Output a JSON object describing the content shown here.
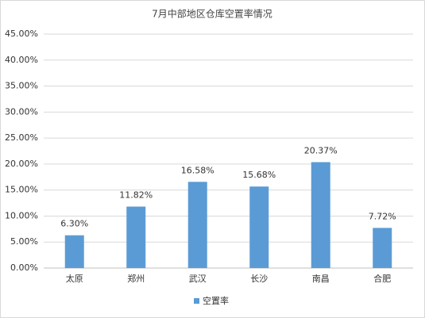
{
  "chart_data": {
    "type": "bar",
    "title": "7月中部地区仓库空置率情况",
    "categories": [
      "太原",
      "郑州",
      "武汉",
      "长沙",
      "南昌",
      "合肥"
    ],
    "series": [
      {
        "name": "空置率",
        "color": "#5b9bd5",
        "values": [
          6.3,
          11.82,
          16.58,
          15.68,
          20.37,
          7.72
        ],
        "value_labels": [
          "6.30%",
          "11.82%",
          "16.58%",
          "15.68%",
          "20.37%",
          "7.72%"
        ]
      }
    ],
    "ylim": [
      0,
      45
    ],
    "yticks": [
      {
        "value": 0,
        "label": "0.00%"
      },
      {
        "value": 5,
        "label": "5.00%"
      },
      {
        "value": 10,
        "label": "10.00%"
      },
      {
        "value": 15,
        "label": "15.00%"
      },
      {
        "value": 20,
        "label": "20.00%"
      },
      {
        "value": 25,
        "label": "25.00%"
      },
      {
        "value": 30,
        "label": "30.00%"
      },
      {
        "value": 35,
        "label": "35.00%"
      },
      {
        "value": 40,
        "label": "40.00%"
      },
      {
        "value": 45,
        "label": "45.00%"
      }
    ],
    "grid": true,
    "legend": "bottom"
  }
}
